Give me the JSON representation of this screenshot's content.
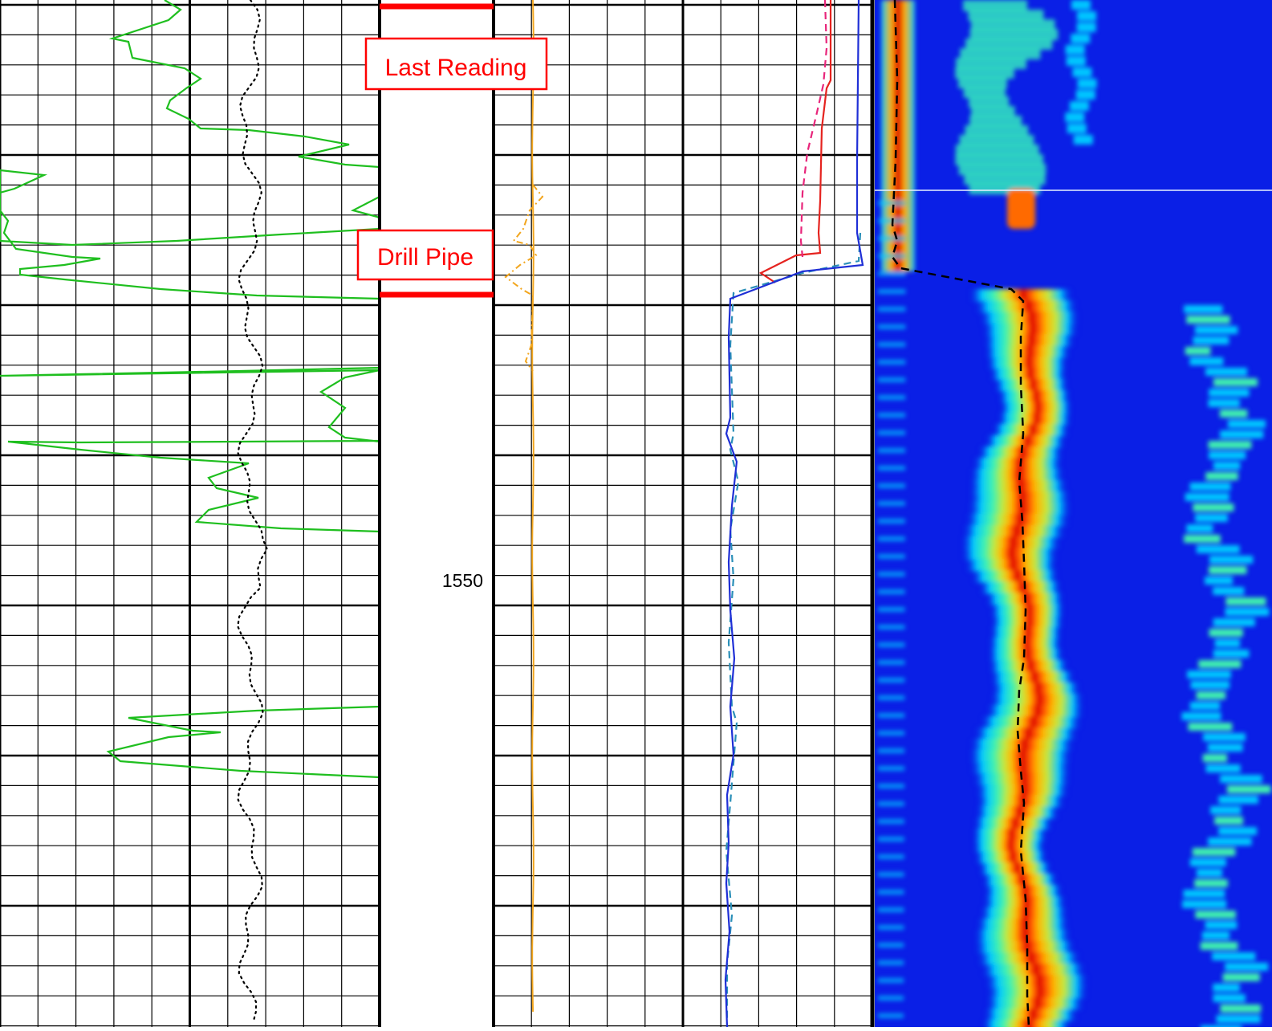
{
  "chart_data": {
    "type": "line",
    "depth_label": "1550",
    "annotations": {
      "last_reading": "Last Reading",
      "drill_pipe": "Drill Pipe"
    },
    "colors": {
      "gamma_ray": "#1fbf1f",
      "caliper": "#000000",
      "orange_curve": "#f2a51c",
      "red_curve": "#e5231f",
      "magenta_curve": "#e8257a",
      "blue_curve": "#1f2fd6",
      "cyan_curve": "#2a8fb8",
      "marker": "#ff0000",
      "image_background": "#0a1fe6",
      "grid": "#000000"
    },
    "image_track": {
      "colormap": [
        "#0a1fe6",
        "#00c8ff",
        "#3ff2b0",
        "#c8e83a",
        "#ffb400",
        "#ff4a00",
        "#d80000"
      ],
      "bright_band_center_dashed": true
    }
  }
}
